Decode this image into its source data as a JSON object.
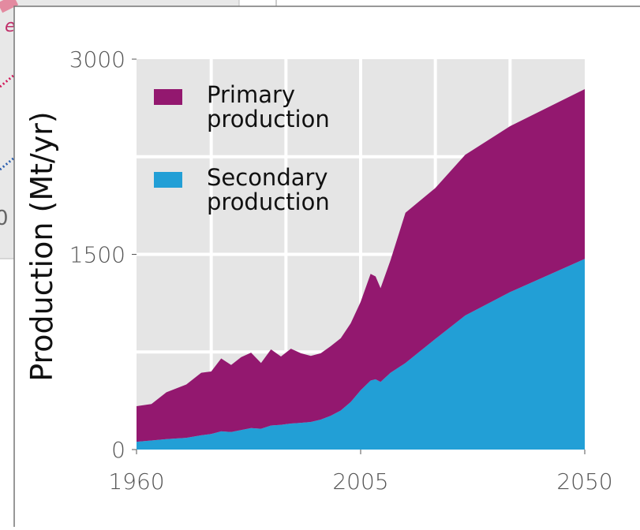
{
  "chart_data": {
    "type": "stacked_area",
    "ylabel": "Production (Mt/yr)",
    "x": [
      1960,
      1963,
      1966,
      1970,
      1973,
      1975,
      1977,
      1979,
      1981,
      1983,
      1985,
      1987,
      1989,
      1991,
      1993,
      1995,
      1997,
      1999,
      2001,
      2003,
      2005,
      2007,
      2008,
      2009,
      2011,
      2014,
      2020,
      2026,
      2035,
      2050
    ],
    "series": [
      {
        "name": "Secondary production",
        "color": "#229fd6",
        "values": [
          60,
          70,
          80,
          90,
          110,
          120,
          140,
          135,
          150,
          165,
          160,
          185,
          190,
          200,
          205,
          212,
          230,
          260,
          300,
          365,
          455,
          530,
          540,
          520,
          590,
          665,
          850,
          1030,
          1210,
          1465
        ]
      },
      {
        "name": "Primary production",
        "color": "#93186f",
        "values": [
          273,
          280,
          360,
          410,
          480,
          480,
          560,
          515,
          560,
          580,
          505,
          585,
          525,
          575,
          535,
          508,
          510,
          535,
          555,
          605,
          680,
          820,
          790,
          720,
          865,
          1155,
          1160,
          1235,
          1275,
          1305
        ]
      }
    ],
    "xlim": [
      1960,
      2050
    ],
    "xticks": [
      1960,
      2005,
      2050
    ],
    "ylim": [
      0,
      3000
    ],
    "yticks": [
      0,
      1500,
      3000
    ],
    "xgrid": [
      1975,
      1990,
      2005,
      2020,
      2035
    ],
    "ygrid": [
      750,
      1500,
      2250
    ],
    "grid": true,
    "legend": "upper left",
    "background_texts": [
      "e",
      "0"
    ]
  }
}
